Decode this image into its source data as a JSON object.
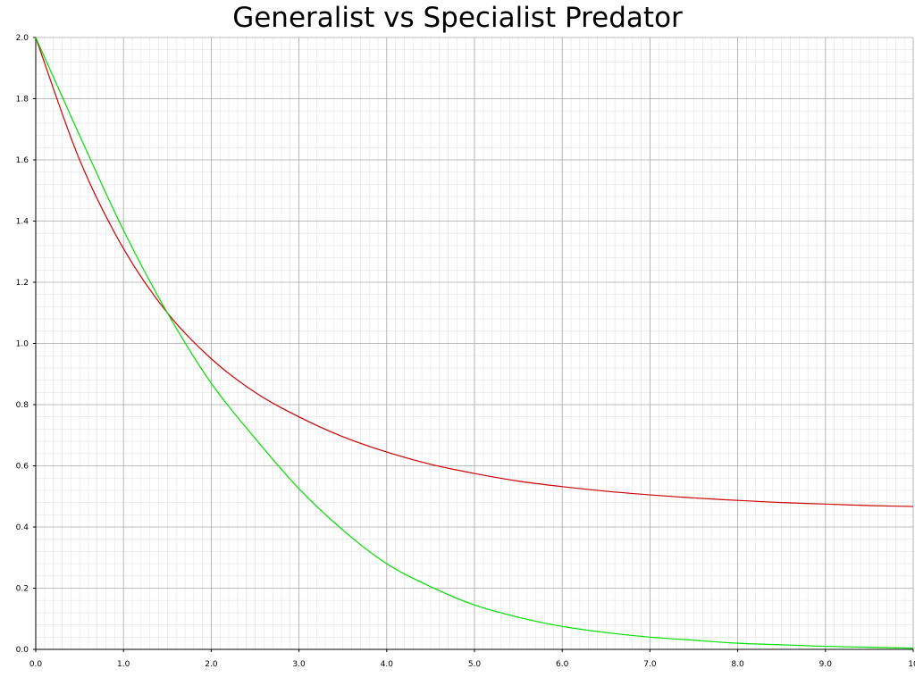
{
  "chart_data": {
    "type": "line",
    "title": "Generalist vs Specialist Predator",
    "xlabel": "",
    "ylabel": "",
    "xlim": [
      0,
      10
    ],
    "ylim": [
      0,
      2
    ],
    "grid": true,
    "x_ticks": [
      "0.0",
      "1.0",
      "2.0",
      "3.0",
      "4.0",
      "5.0",
      "6.0",
      "7.0",
      "8.0",
      "9.0",
      "10"
    ],
    "y_ticks": [
      "0.0",
      "0.2",
      "0.4",
      "0.6",
      "0.8",
      "1.0",
      "1.2",
      "1.4",
      "1.6",
      "1.8",
      "2.0"
    ],
    "x": [
      0,
      0.5,
      1,
      1.5,
      2,
      2.5,
      3,
      3.5,
      4,
      4.5,
      5,
      5.5,
      6,
      6.5,
      7,
      7.5,
      8,
      8.5,
      9,
      9.5,
      10
    ],
    "series": [
      {
        "color": "#cc0000",
        "values": [
          2.0,
          1.6,
          1.31,
          1.1,
          0.95,
          0.84,
          0.76,
          0.695,
          0.645,
          0.605,
          0.575,
          0.55,
          0.532,
          0.517,
          0.505,
          0.495,
          0.487,
          0.48,
          0.475,
          0.47,
          0.467
        ]
      },
      {
        "color": "#00dd00",
        "values": [
          2.0,
          1.68,
          1.37,
          1.1,
          0.87,
          0.69,
          0.525,
          0.39,
          0.28,
          0.205,
          0.145,
          0.105,
          0.075,
          0.055,
          0.04,
          0.03,
          0.02,
          0.015,
          0.01,
          0.007,
          0.004
        ]
      }
    ]
  }
}
